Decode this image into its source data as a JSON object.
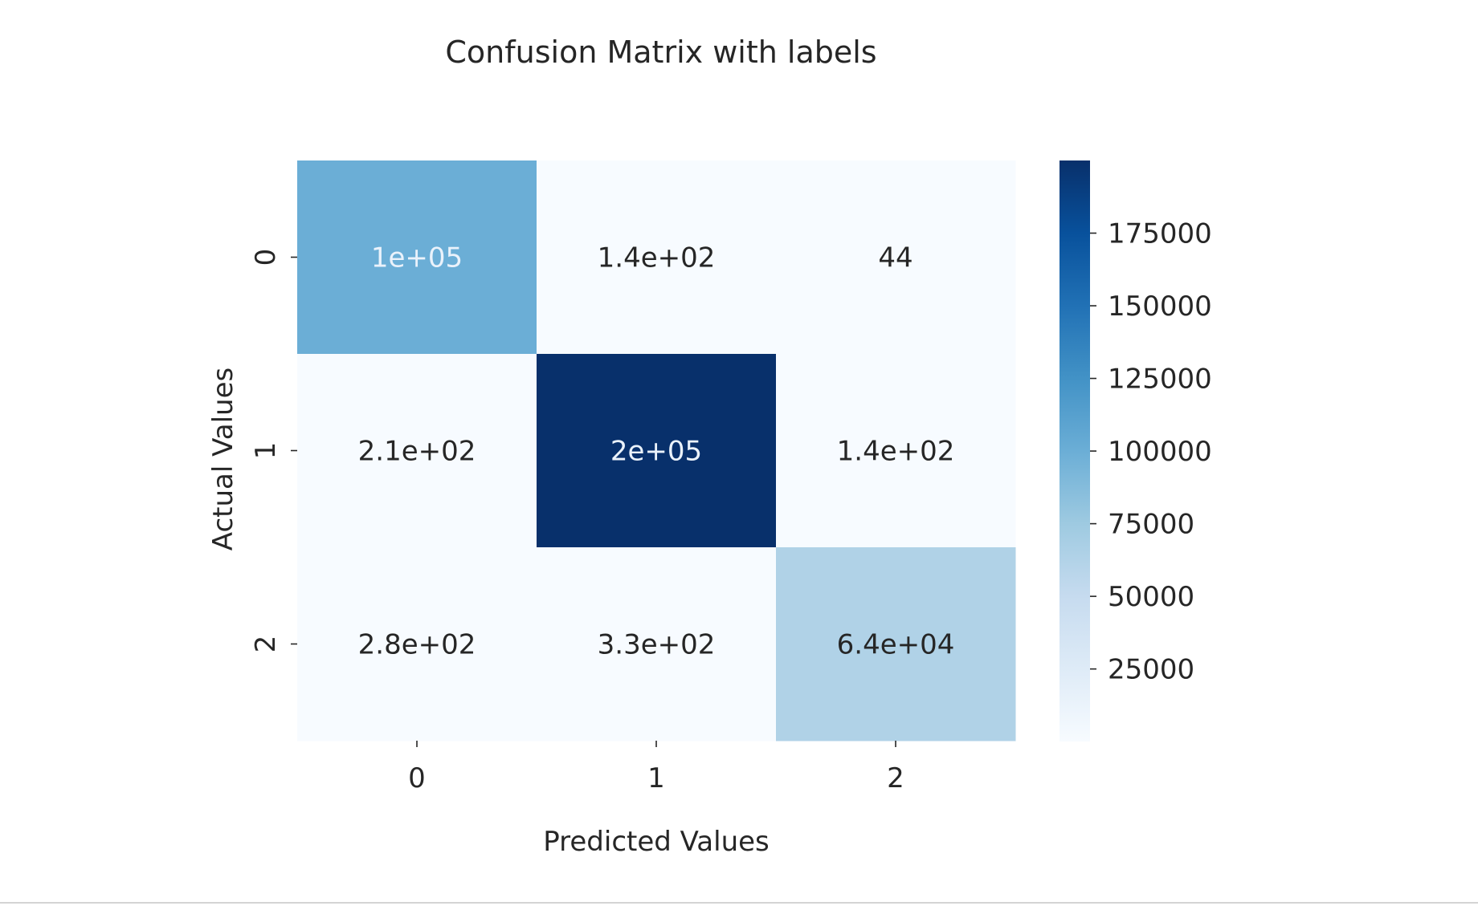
{
  "chart_data": {
    "type": "heatmap",
    "title": "Confusion Matrix with labels",
    "xlabel": "Predicted Values",
    "ylabel": "Actual Values",
    "x_categories": [
      "0",
      "1",
      "2"
    ],
    "y_categories": [
      "0",
      "1",
      "2"
    ],
    "values": [
      [
        100000,
        140,
        44
      ],
      [
        210,
        200000,
        140
      ],
      [
        280,
        330,
        64000
      ]
    ],
    "annotations": [
      [
        "1e+05",
        "1.4e+02",
        "44"
      ],
      [
        "2.1e+02",
        "2e+05",
        "1.4e+02"
      ],
      [
        "2.8e+02",
        "3.3e+02",
        "6.4e+04"
      ]
    ],
    "colormap": "Blues",
    "colorbar": {
      "range": [
        44,
        200000
      ],
      "ticks": [
        25000,
        50000,
        75000,
        100000,
        125000,
        150000,
        175000
      ]
    },
    "colors": {
      "text_light": "#eaf2fb",
      "text_dark": "#262626",
      "axis": "#262626"
    }
  }
}
